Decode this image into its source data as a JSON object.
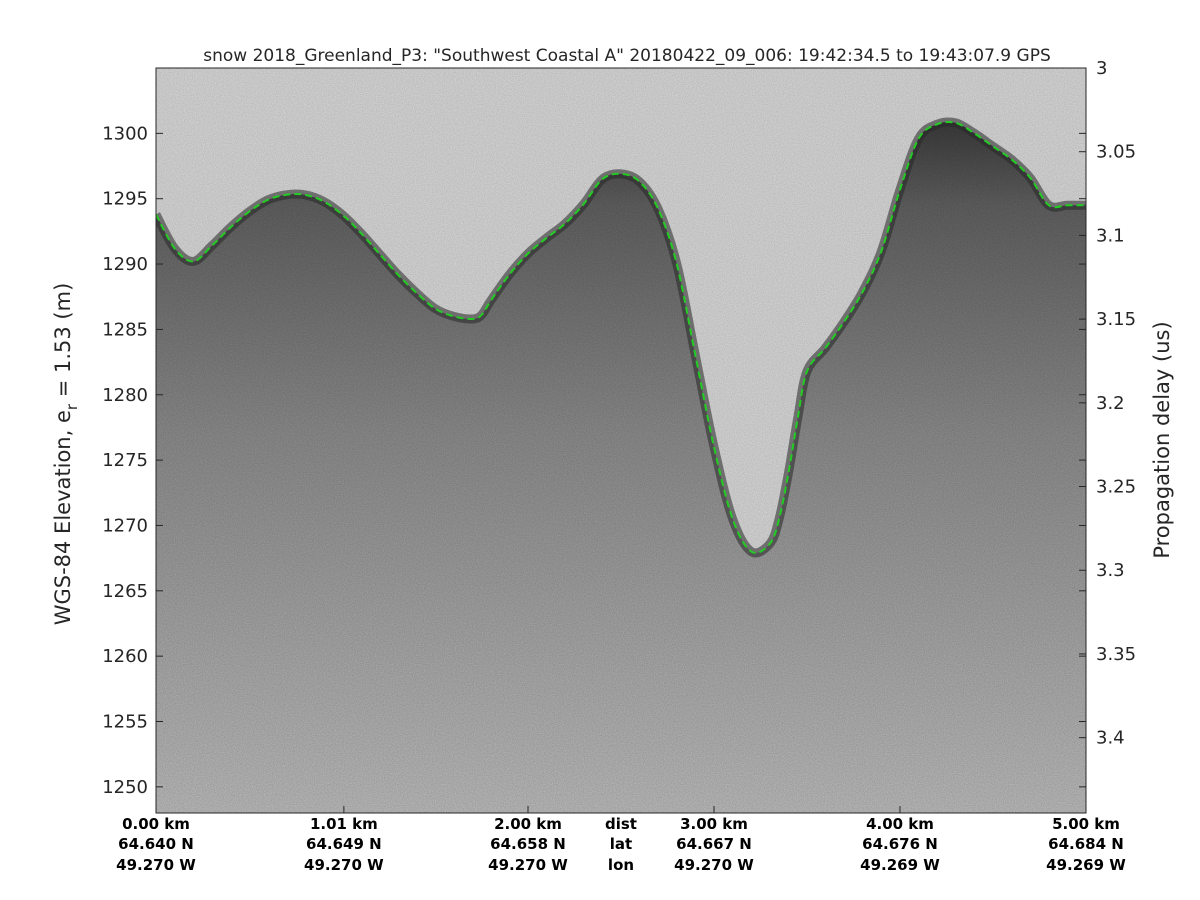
{
  "chart_data": {
    "type": "radargram",
    "title": "snow 2018_Greenland_P3: \"Southwest Coastal A\"  20180422_09_006: 19:42:34.5 to 19:43:07.9 GPS",
    "ylabel_left": {
      "main": "WGS-84 Elevation, e",
      "subscript": "r",
      "suffix": " = 1.53 (m)"
    },
    "ylabel_right": "Propagation delay (us)",
    "ylim_left": [
      1248,
      1305
    ],
    "yticks_left": [
      1250,
      1255,
      1260,
      1265,
      1270,
      1275,
      1280,
      1285,
      1290,
      1295,
      1300
    ],
    "ylim_right": [
      3.0,
      3.445
    ],
    "yticks_right": [
      3,
      3.05,
      3.1,
      3.15,
      3.2,
      3.25,
      3.3,
      3.35,
      3.4
    ],
    "xlim_km": [
      0,
      5.0
    ],
    "grid": false,
    "surface_color": "#22cc22",
    "surface_style": "dashed",
    "x_annotations": [
      {
        "dist_km": 0.0,
        "dist": "0.00 km",
        "lat": "64.640 N",
        "lon": "49.270 W"
      },
      {
        "dist_km": 1.01,
        "dist": "1.01 km",
        "lat": "64.649 N",
        "lon": "49.270 W"
      },
      {
        "dist_km": 2.0,
        "dist": "2.00 km",
        "lat": "64.658 N",
        "lon": "49.270 W"
      },
      {
        "dist_km": 3.0,
        "dist": "3.00 km",
        "lat": "64.667 N",
        "lon": "49.270 W"
      },
      {
        "dist_km": 4.0,
        "dist": "4.00 km",
        "lat": "64.676 N",
        "lon": "49.269 W"
      },
      {
        "dist_km": 5.0,
        "dist": "5.00 km",
        "lat": "64.684 N",
        "lon": "49.269 W"
      }
    ],
    "row_labels": {
      "dist": "dist",
      "lat": "lat",
      "lon": "lon"
    },
    "surface": {
      "x_km": [
        0.0,
        0.1,
        0.2,
        0.3,
        0.4,
        0.5,
        0.6,
        0.7,
        0.8,
        0.9,
        1.0,
        1.1,
        1.2,
        1.3,
        1.4,
        1.5,
        1.6,
        1.7,
        1.75,
        1.8,
        1.9,
        2.0,
        2.1,
        2.2,
        2.3,
        2.4,
        2.5,
        2.6,
        2.7,
        2.8,
        2.9,
        3.0,
        3.1,
        3.2,
        3.3,
        3.35,
        3.4,
        3.45,
        3.5,
        3.6,
        3.7,
        3.8,
        3.9,
        4.0,
        4.1,
        4.2,
        4.3,
        4.4,
        4.5,
        4.6,
        4.7,
        4.8,
        4.9,
        5.0
      ],
      "elev_m": [
        1293.8,
        1291.2,
        1290.2,
        1291.4,
        1292.8,
        1294.0,
        1294.9,
        1295.3,
        1295.3,
        1294.8,
        1293.8,
        1292.4,
        1290.8,
        1289.2,
        1287.8,
        1286.6,
        1286.0,
        1285.8,
        1286.1,
        1287.2,
        1289.2,
        1290.8,
        1292.0,
        1293.1,
        1294.6,
        1296.5,
        1296.9,
        1296.3,
        1294.2,
        1290.0,
        1283.0,
        1276.0,
        1270.5,
        1268.0,
        1268.6,
        1270.5,
        1274.0,
        1278.2,
        1281.8,
        1283.6,
        1285.6,
        1287.9,
        1291.0,
        1295.7,
        1299.6,
        1300.7,
        1300.8,
        1300.0,
        1299.0,
        1298.0,
        1296.6,
        1294.5,
        1294.5,
        1294.5
      ]
    }
  }
}
